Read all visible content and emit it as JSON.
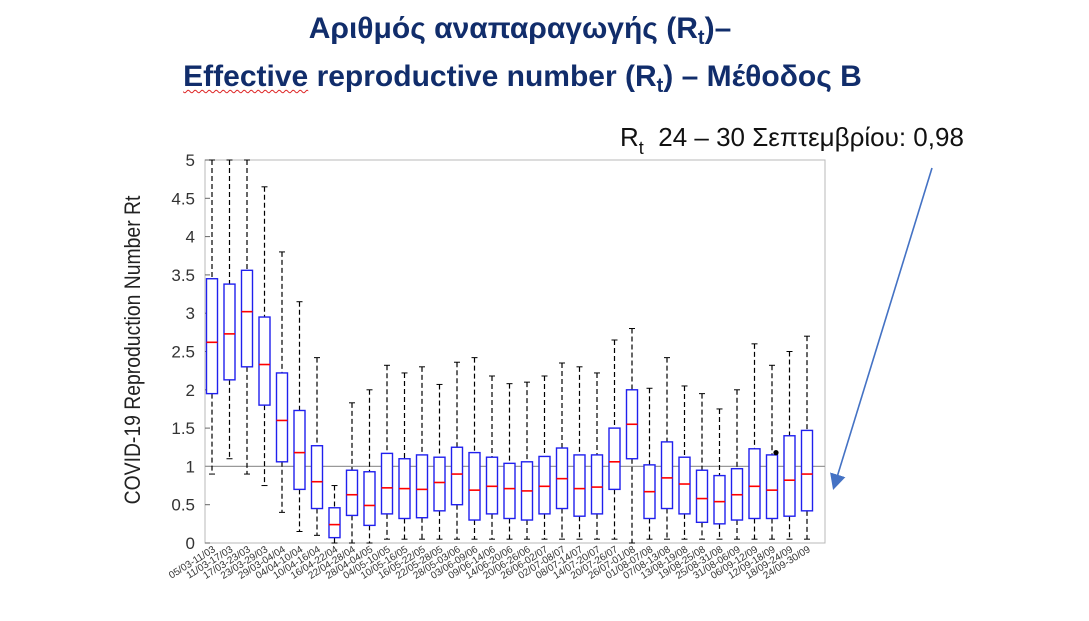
{
  "titles": {
    "line1_pre": "Αριθμός αναπαραγωγής (R",
    "line1_sub": "t",
    "line1_post": ")–",
    "line2_word1": "Effective",
    "line2_word2": " reproductive number (R",
    "line2_sub": "t",
    "line2_post": ") – Μέθοδος Β"
  },
  "annotation": {
    "symbol": "R",
    "sub": "t",
    "text": "24 – 30 Σεπτεμβρίου: 0,98"
  },
  "colors": {
    "title": "#112d6b",
    "box": "#2020ee",
    "median": "#ff0000",
    "whisker": "#000000",
    "reference_line": "#999999",
    "arrow": "#4472c4"
  },
  "chart_data": {
    "type": "boxplot",
    "ylabel": "COVID-19 Reproduction Number Rt",
    "xlabel": "",
    "ylim": [
      0,
      5
    ],
    "yticks": [
      "0",
      "0.5",
      "1",
      "1.5",
      "2",
      "2.5",
      "3",
      "3.5",
      "4",
      "4.5",
      "5"
    ],
    "reference_line": 1,
    "categories": [
      "05/03-11/03",
      "11/03-17/03",
      "17/03-23/03",
      "23/03-29/03",
      "29/03-04/04",
      "04/04-10/04",
      "10/04-16/04",
      "16/04-22/04",
      "22/04-28/04",
      "28/04-04/05",
      "04/05-10/05",
      "10/05-16/05",
      "16/05-22/05",
      "22/05-28/05",
      "28/05-03/06",
      "03/06-09/06",
      "09/06-14/06",
      "14/06-20/06",
      "20/06-26/06",
      "26/06-02/07",
      "02/07-08/07",
      "08/07-14/07",
      "14/07-20/07",
      "20/07-26/07",
      "26/07-01/08",
      "01/08-07/08",
      "07/08-13/08",
      "13/08-19/08",
      "19/08-25/08",
      "25/08-31/08",
      "31/08-06/09",
      "06/09-12/09",
      "12/09-18/09",
      "18/09-24/09",
      "24/09-30/09"
    ],
    "boxes": [
      {
        "q1": 1.95,
        "median": 2.62,
        "q3": 3.45,
        "whisker_low": 0.9,
        "whisker_high": 5.0
      },
      {
        "q1": 2.13,
        "median": 2.73,
        "q3": 3.38,
        "whisker_low": 1.1,
        "whisker_high": 5.0
      },
      {
        "q1": 2.3,
        "median": 3.02,
        "q3": 3.56,
        "whisker_low": 0.9,
        "whisker_high": 5.0
      },
      {
        "q1": 1.8,
        "median": 2.33,
        "q3": 2.95,
        "whisker_low": 0.75,
        "whisker_high": 4.65
      },
      {
        "q1": 1.06,
        "median": 1.6,
        "q3": 2.22,
        "whisker_low": 0.4,
        "whisker_high": 3.8
      },
      {
        "q1": 0.7,
        "median": 1.18,
        "q3": 1.73,
        "whisker_low": 0.15,
        "whisker_high": 3.15
      },
      {
        "q1": 0.45,
        "median": 0.8,
        "q3": 1.27,
        "whisker_low": 0.1,
        "whisker_high": 2.42
      },
      {
        "q1": 0.07,
        "median": 0.24,
        "q3": 0.46,
        "whisker_low": 0.0,
        "whisker_high": 0.75
      },
      {
        "q1": 0.36,
        "median": 0.63,
        "q3": 0.95,
        "whisker_low": 0.0,
        "whisker_high": 1.83
      },
      {
        "q1": 0.23,
        "median": 0.49,
        "q3": 0.93,
        "whisker_low": 0.0,
        "whisker_high": 2.0
      },
      {
        "q1": 0.38,
        "median": 0.72,
        "q3": 1.17,
        "whisker_low": 0.05,
        "whisker_high": 2.32
      },
      {
        "q1": 0.32,
        "median": 0.71,
        "q3": 1.1,
        "whisker_low": 0.05,
        "whisker_high": 2.22
      },
      {
        "q1": 0.33,
        "median": 0.7,
        "q3": 1.15,
        "whisker_low": 0.05,
        "whisker_high": 2.3
      },
      {
        "q1": 0.42,
        "median": 0.79,
        "q3": 1.12,
        "whisker_low": 0.05,
        "whisker_high": 2.07
      },
      {
        "q1": 0.5,
        "median": 0.9,
        "q3": 1.25,
        "whisker_low": 0.05,
        "whisker_high": 2.36
      },
      {
        "q1": 0.3,
        "median": 0.69,
        "q3": 1.18,
        "whisker_low": 0.05,
        "whisker_high": 2.42
      },
      {
        "q1": 0.38,
        "median": 0.74,
        "q3": 1.12,
        "whisker_low": 0.05,
        "whisker_high": 2.18
      },
      {
        "q1": 0.32,
        "median": 0.71,
        "q3": 1.04,
        "whisker_low": 0.05,
        "whisker_high": 2.08
      },
      {
        "q1": 0.3,
        "median": 0.68,
        "q3": 1.06,
        "whisker_low": 0.05,
        "whisker_high": 2.1
      },
      {
        "q1": 0.38,
        "median": 0.74,
        "q3": 1.13,
        "whisker_low": 0.05,
        "whisker_high": 2.18
      },
      {
        "q1": 0.45,
        "median": 0.84,
        "q3": 1.24,
        "whisker_low": 0.05,
        "whisker_high": 2.35
      },
      {
        "q1": 0.35,
        "median": 0.71,
        "q3": 1.15,
        "whisker_low": 0.05,
        "whisker_high": 2.3
      },
      {
        "q1": 0.38,
        "median": 0.73,
        "q3": 1.15,
        "whisker_low": 0.05,
        "whisker_high": 2.22
      },
      {
        "q1": 0.7,
        "median": 1.06,
        "q3": 1.5,
        "whisker_low": 0.05,
        "whisker_high": 2.65
      },
      {
        "q1": 1.1,
        "median": 1.55,
        "q3": 2.0,
        "whisker_low": 0.0,
        "whisker_high": 2.8
      },
      {
        "q1": 0.32,
        "median": 0.67,
        "q3": 1.02,
        "whisker_low": 0.05,
        "whisker_high": 2.02
      },
      {
        "q1": 0.45,
        "median": 0.85,
        "q3": 1.32,
        "whisker_low": 0.05,
        "whisker_high": 2.42
      },
      {
        "q1": 0.38,
        "median": 0.77,
        "q3": 1.12,
        "whisker_low": 0.05,
        "whisker_high": 2.05
      },
      {
        "q1": 0.27,
        "median": 0.58,
        "q3": 0.95,
        "whisker_low": 0.05,
        "whisker_high": 1.95
      },
      {
        "q1": 0.25,
        "median": 0.54,
        "q3": 0.88,
        "whisker_low": 0.05,
        "whisker_high": 1.75
      },
      {
        "q1": 0.3,
        "median": 0.63,
        "q3": 0.97,
        "whisker_low": 0.05,
        "whisker_high": 2.0
      },
      {
        "q1": 0.32,
        "median": 0.74,
        "q3": 1.23,
        "whisker_low": 0.05,
        "whisker_high": 2.6
      },
      {
        "q1": 0.32,
        "median": 0.69,
        "q3": 1.15,
        "whisker_low": 0.05,
        "whisker_high": 2.32
      },
      {
        "q1": 0.35,
        "median": 0.82,
        "q3": 1.4,
        "whisker_low": 0.05,
        "whisker_high": 2.5
      },
      {
        "q1": 0.42,
        "median": 0.9,
        "q3": 1.47,
        "whisker_low": 0.05,
        "whisker_high": 2.7
      }
    ],
    "outliers": [
      {
        "category_index": 32,
        "value": 1.18
      }
    ]
  }
}
